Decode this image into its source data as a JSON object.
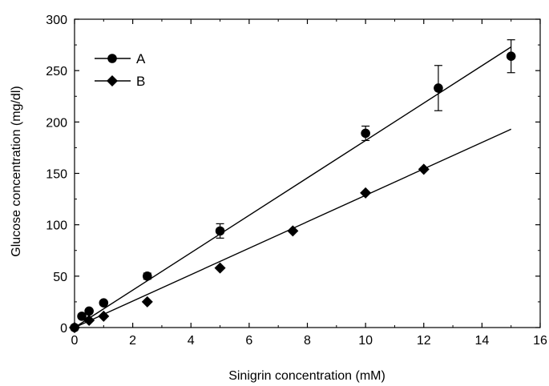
{
  "chart_data": {
    "type": "scatter",
    "xlabel": "Sinigrin concentration (mM)",
    "ylabel": "Glucose concentration (mg/dl)",
    "xlim": [
      0,
      16
    ],
    "ylim": [
      0,
      300
    ],
    "xticks": [
      0,
      2,
      4,
      6,
      8,
      10,
      12,
      14,
      16
    ],
    "yticks": [
      0,
      50,
      100,
      150,
      200,
      250,
      300
    ],
    "grid": false,
    "legend_position": "top-left",
    "series": [
      {
        "name": "A",
        "marker": "circle",
        "color": "#000000",
        "points": [
          {
            "x": 0,
            "y": 0,
            "err": 0
          },
          {
            "x": 0.25,
            "y": 11,
            "err": 0
          },
          {
            "x": 0.5,
            "y": 16,
            "err": 0
          },
          {
            "x": 1,
            "y": 24,
            "err": 0
          },
          {
            "x": 2.5,
            "y": 50,
            "err": 3
          },
          {
            "x": 5,
            "y": 94,
            "err": 7
          },
          {
            "x": 10,
            "y": 189,
            "err": 7
          },
          {
            "x": 12.5,
            "y": 233,
            "err": 22
          },
          {
            "x": 15,
            "y": 264,
            "err": 16
          }
        ],
        "fit": {
          "x": [
            0,
            15
          ],
          "y": [
            0,
            273
          ]
        }
      },
      {
        "name": "B",
        "marker": "diamond",
        "color": "#000000",
        "points": [
          {
            "x": 0,
            "y": 0,
            "err": 0
          },
          {
            "x": 0.5,
            "y": 7,
            "err": 0
          },
          {
            "x": 1,
            "y": 11,
            "err": 0
          },
          {
            "x": 2.5,
            "y": 25,
            "err": 0
          },
          {
            "x": 5,
            "y": 58,
            "err": 0
          },
          {
            "x": 7.5,
            "y": 94,
            "err": 0
          },
          {
            "x": 10,
            "y": 131,
            "err": 0
          },
          {
            "x": 12,
            "y": 154,
            "err": 0
          }
        ],
        "fit": {
          "x": [
            0,
            15
          ],
          "y": [
            0,
            193
          ]
        }
      }
    ]
  }
}
